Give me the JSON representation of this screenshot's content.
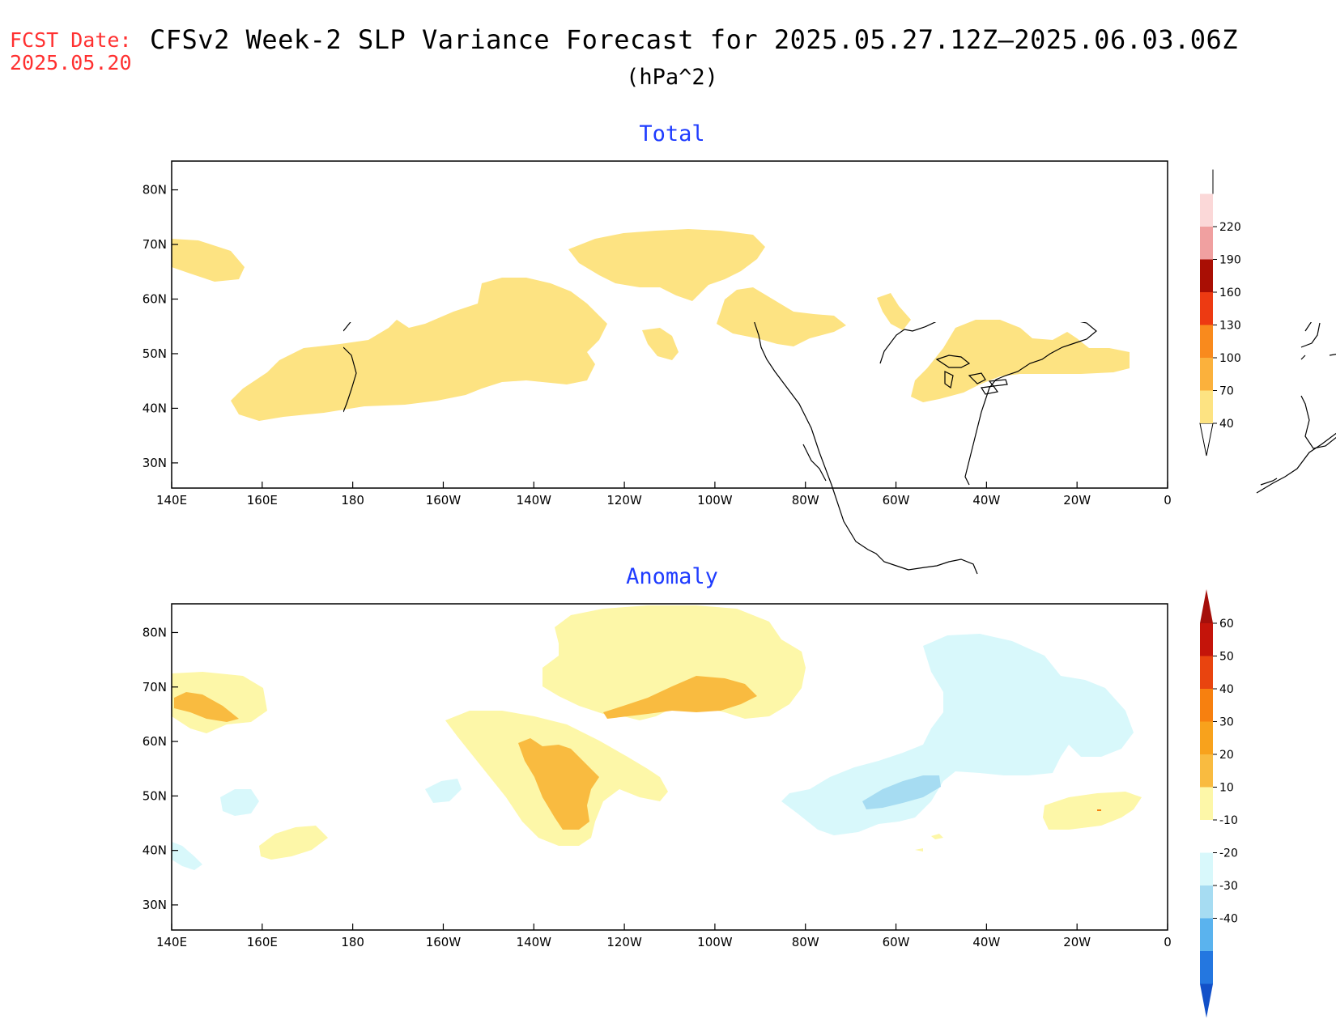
{
  "header": {
    "fcst_label": "FCST Date:",
    "fcst_date": "2025.05.20",
    "title": "CFSv2 Week-2 SLP Variance Forecast for 2025.05.27.12Z—2025.06.03.06Z",
    "units": "(hPa^2)"
  },
  "panels": [
    {
      "title": "Total",
      "lat_ticks": [
        "30N",
        "40N",
        "50N",
        "60N",
        "70N",
        "80N"
      ],
      "lon_ticks": [
        "140E",
        "160E",
        "180",
        "160W",
        "140W",
        "120W",
        "100W",
        "80W",
        "60W",
        "40W",
        "20W",
        "0"
      ],
      "colorbar": {
        "levels": [
          "40",
          "70",
          "100",
          "130",
          "160",
          "190",
          "220"
        ],
        "colors": [
          "#fde382",
          "#fbb13c",
          "#f98a1d",
          "#ed3a12",
          "#a90e04",
          "#f0a0a0",
          "#fbd8d8"
        ]
      }
    },
    {
      "title": "Anomaly",
      "lat_ticks": [
        "30N",
        "40N",
        "50N",
        "60N",
        "70N",
        "80N"
      ],
      "lon_ticks": [
        "140E",
        "160E",
        "180",
        "160W",
        "140W",
        "120W",
        "100W",
        "80W",
        "60W",
        "40W",
        "20W",
        "0"
      ],
      "colorbar": {
        "levels": [
          "60",
          "50",
          "40",
          "30",
          "20",
          "10",
          "-10",
          "-20",
          "-30",
          "-40"
        ],
        "colors": [
          "#c4140a",
          "#e9440f",
          "#f7800f",
          "#f8a21c",
          "#f9bb40",
          "#fdf7a8",
          "#ffffff",
          "#d8f8fb",
          "#a6dcf2",
          "#5ab3ee",
          "#2477e0",
          "#1250c8"
        ]
      }
    }
  ],
  "chart_data": [
    {
      "type": "heatmap",
      "title": "Total",
      "units": "hPa^2",
      "lon_range": [
        "140E",
        "0"
      ],
      "lat_range": [
        "25N",
        "85N"
      ],
      "shaded_regions": [
        {
          "area": "western Bering / Kamchatka near 68N 145E",
          "bin": "40-70"
        },
        {
          "area": "North Pacific band 40N-60N, 165E-125W",
          "bin": "40-70"
        },
        {
          "area": "Canadian Arctic Archipelago 64N-72N, 125W-88W",
          "bin": "40-70"
        },
        {
          "area": "Hudson Bay 53N-60N, 100W-75W",
          "bin": "40-70"
        },
        {
          "area": "Labrador near 57N 62W",
          "bin": "40-70"
        },
        {
          "area": "North Atlantic 40N-55N, 55W-10W",
          "bin": "40-70"
        },
        {
          "area": "southern Canada near 50N 110W",
          "bin": "40-70"
        }
      ]
    },
    {
      "type": "heatmap",
      "title": "Anomaly",
      "units": "hPa^2",
      "lon_range": [
        "140E",
        "0"
      ],
      "lat_range": [
        "25N",
        "85N"
      ],
      "shaded_regions": [
        {
          "area": "Kamchatka 65N-72N, 140E-162E",
          "bin": "10-20 with 20-30 core"
        },
        {
          "area": "Gulf of Alaska 43N-62N, 150W-115W",
          "bin": "10-20 with 20-30 core"
        },
        {
          "area": "Canadian Arctic 60N-85N, 130W-80W",
          "bin": "10-20 with 20-30 core"
        },
        {
          "area": "Pacific near 42N 167E",
          "bin": "10-20"
        },
        {
          "area": "eastern Atlantic near 45N 20W",
          "bin": "10-20"
        },
        {
          "area": "Greenland / Labrador 43N-78N, 85W-15W",
          "bin": "-20 to -10 with -30 to -20 core"
        },
        {
          "area": "Pacific near 48N 165E and 50N 155W",
          "bin": "-20 to -10"
        }
      ]
    }
  ]
}
